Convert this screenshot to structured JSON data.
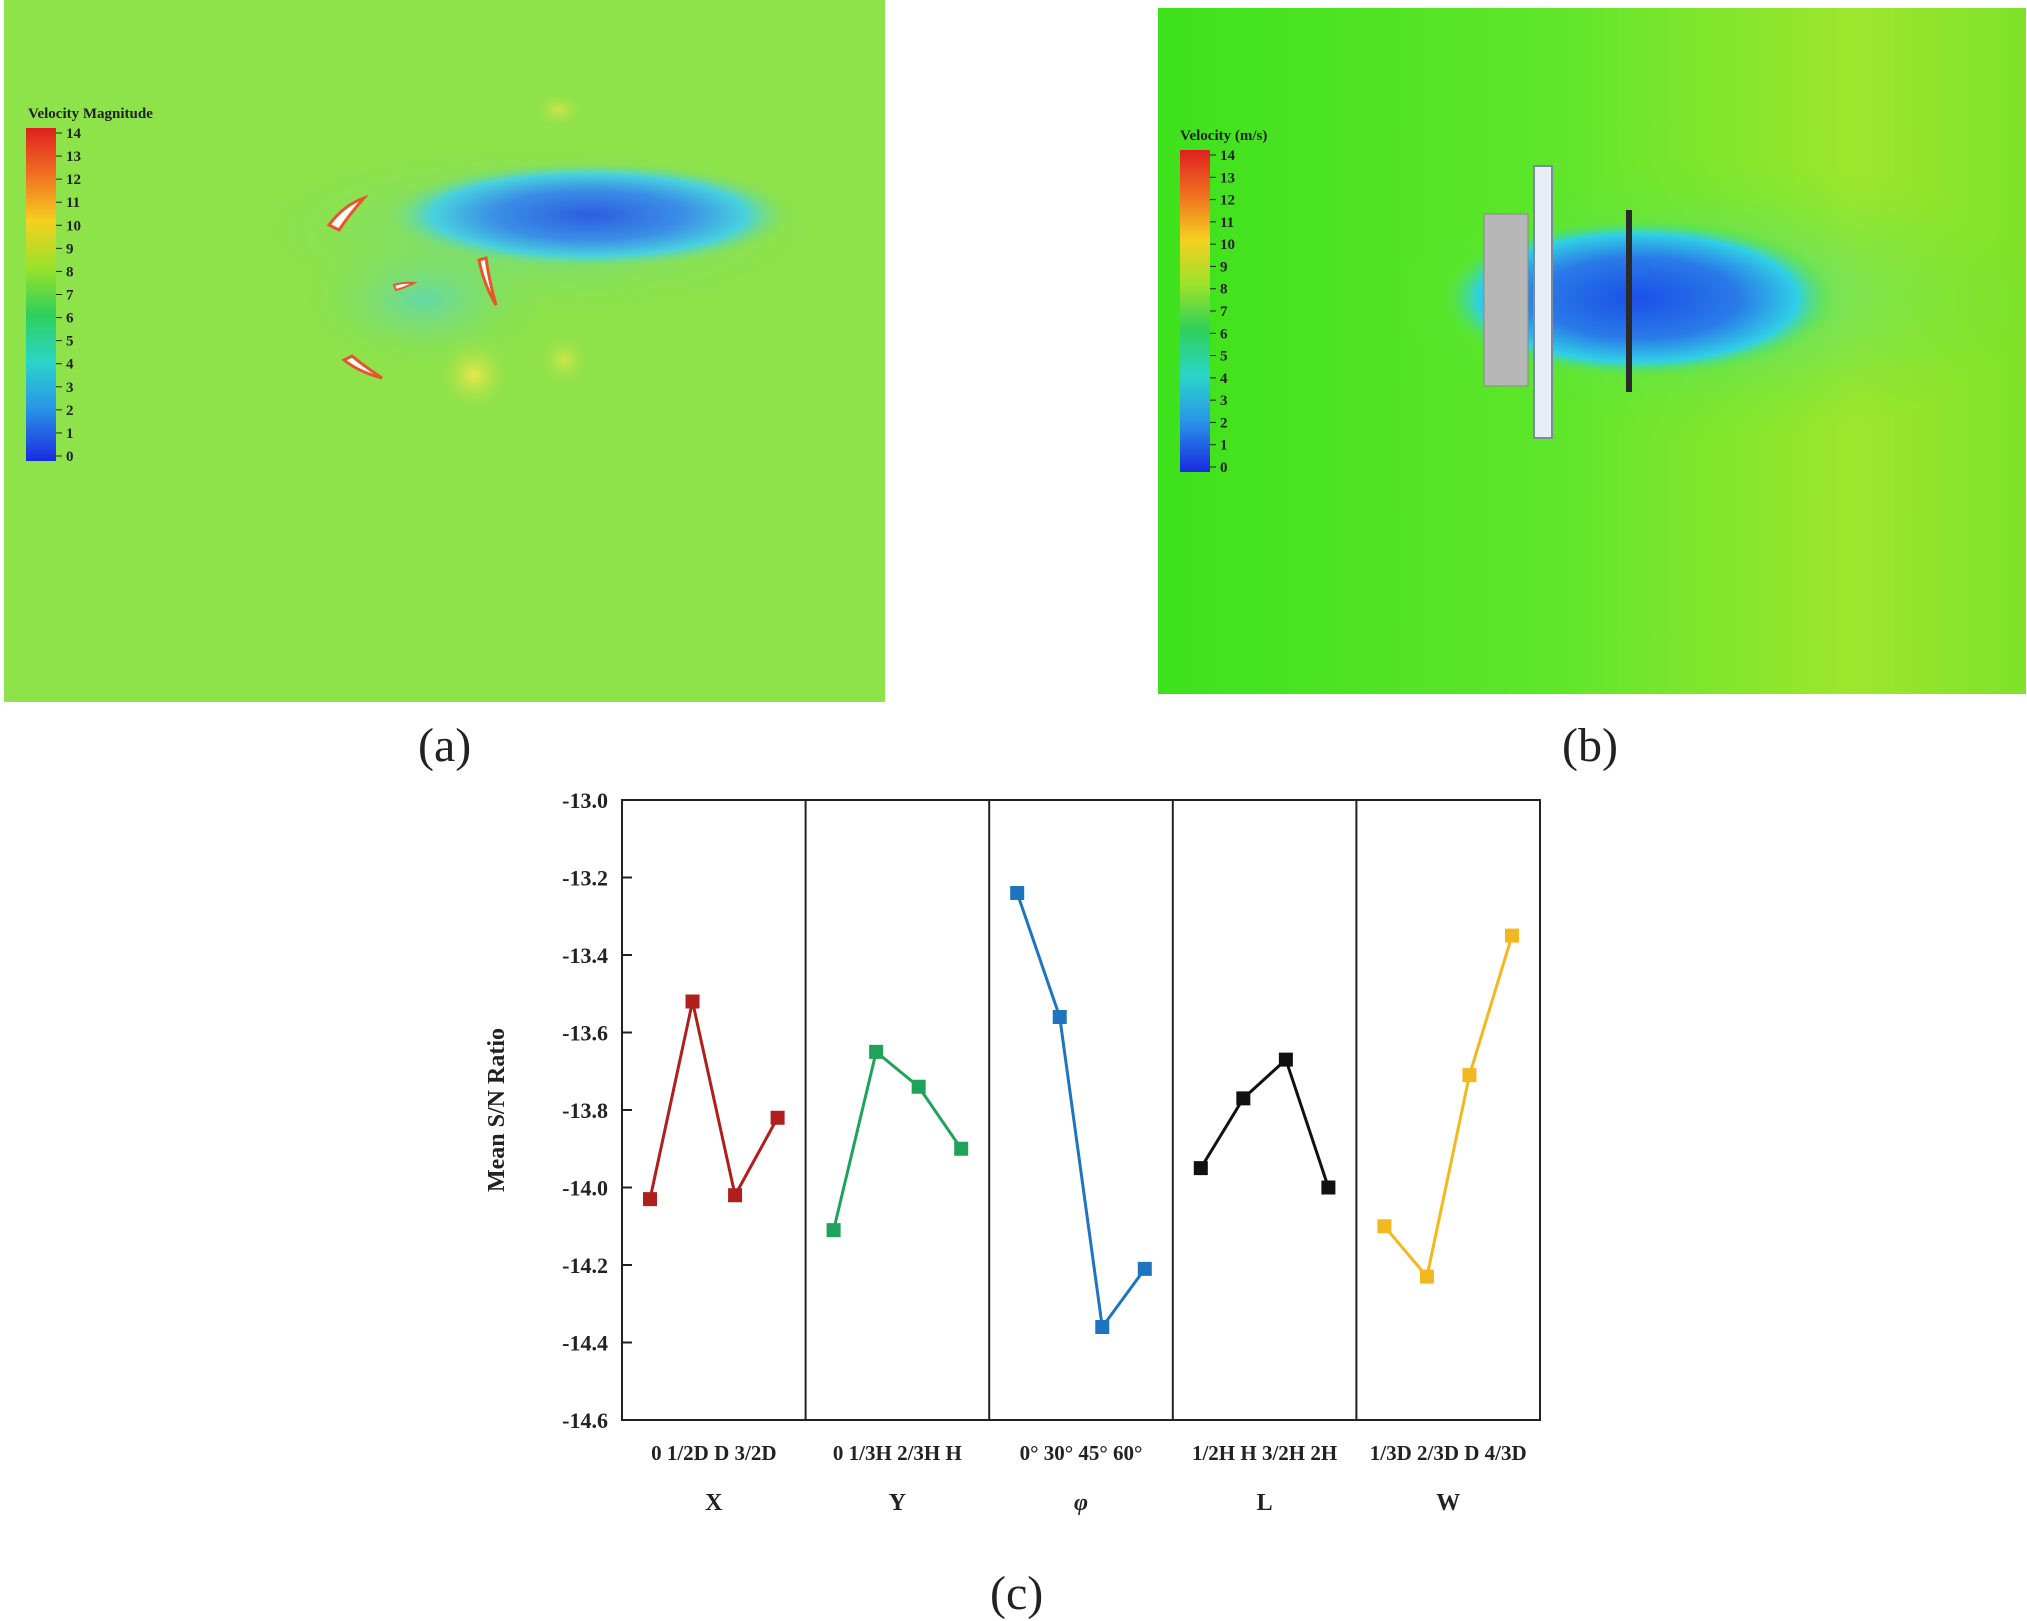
{
  "panel_a": {
    "legend_title": "Velocity Magnitude",
    "legend_ticks": [
      "14",
      "13",
      "12",
      "11",
      "10",
      "9",
      "8",
      "7",
      "6",
      "5",
      "4",
      "3",
      "2",
      "1",
      "0"
    ]
  },
  "panel_b": {
    "legend_title": "Velocity (m/s)",
    "legend_ticks": [
      "14",
      "13",
      "12",
      "11",
      "10",
      "9",
      "8",
      "7",
      "6",
      "5",
      "4",
      "3",
      "2",
      "1",
      "0"
    ]
  },
  "captions": {
    "a": "(a)",
    "b": "(b)",
    "c": "(c)"
  },
  "colors": {
    "X": "#b01e1e",
    "Y": "#1fa35a",
    "phi": "#1f74c0",
    "L": "#111111",
    "W": "#f2b81e",
    "flow_green": "#8ee24a",
    "flow_green_b": "#3fe21a"
  },
  "chart_data": {
    "type": "line",
    "ylabel": "Mean S/N Ratio",
    "ylim": [
      -14.6,
      -13.0
    ],
    "yticks": [
      -13.0,
      -13.2,
      -13.4,
      -13.6,
      -13.8,
      -14.0,
      -14.2,
      -14.4,
      -14.6
    ],
    "ytick_labels": [
      "-13.0",
      "-13.2",
      "-13.4",
      "-13.6",
      "-13.8",
      "-14.0",
      "-14.2",
      "-14.4",
      "-14.6"
    ],
    "factors": [
      {
        "name": "X",
        "levels": [
          "0",
          "1/2D",
          "D",
          "3/2D"
        ],
        "values": [
          -14.03,
          -13.52,
          -14.02,
          -13.82
        ],
        "color": "#b01e1e"
      },
      {
        "name": "Y",
        "levels": [
          "0",
          "1/3H",
          "2/3H",
          "H"
        ],
        "values": [
          -14.11,
          -13.65,
          -13.74,
          -13.9
        ],
        "color": "#1fa35a"
      },
      {
        "name": "φ",
        "levels": [
          "0°",
          "30°",
          "45°",
          "60°"
        ],
        "values": [
          -13.24,
          -13.56,
          -14.36,
          -14.21
        ],
        "color": "#1f74c0"
      },
      {
        "name": "L",
        "levels": [
          "1/2H",
          "H",
          "3/2H",
          "2H"
        ],
        "values": [
          -13.95,
          -13.77,
          -13.67,
          -14.0
        ],
        "color": "#111111"
      },
      {
        "name": "W",
        "levels": [
          "1/3D",
          "2/3D",
          "D",
          "4/3D"
        ],
        "values": [
          -14.1,
          -14.23,
          -13.71,
          -13.35
        ],
        "color": "#f2b81e"
      }
    ]
  }
}
